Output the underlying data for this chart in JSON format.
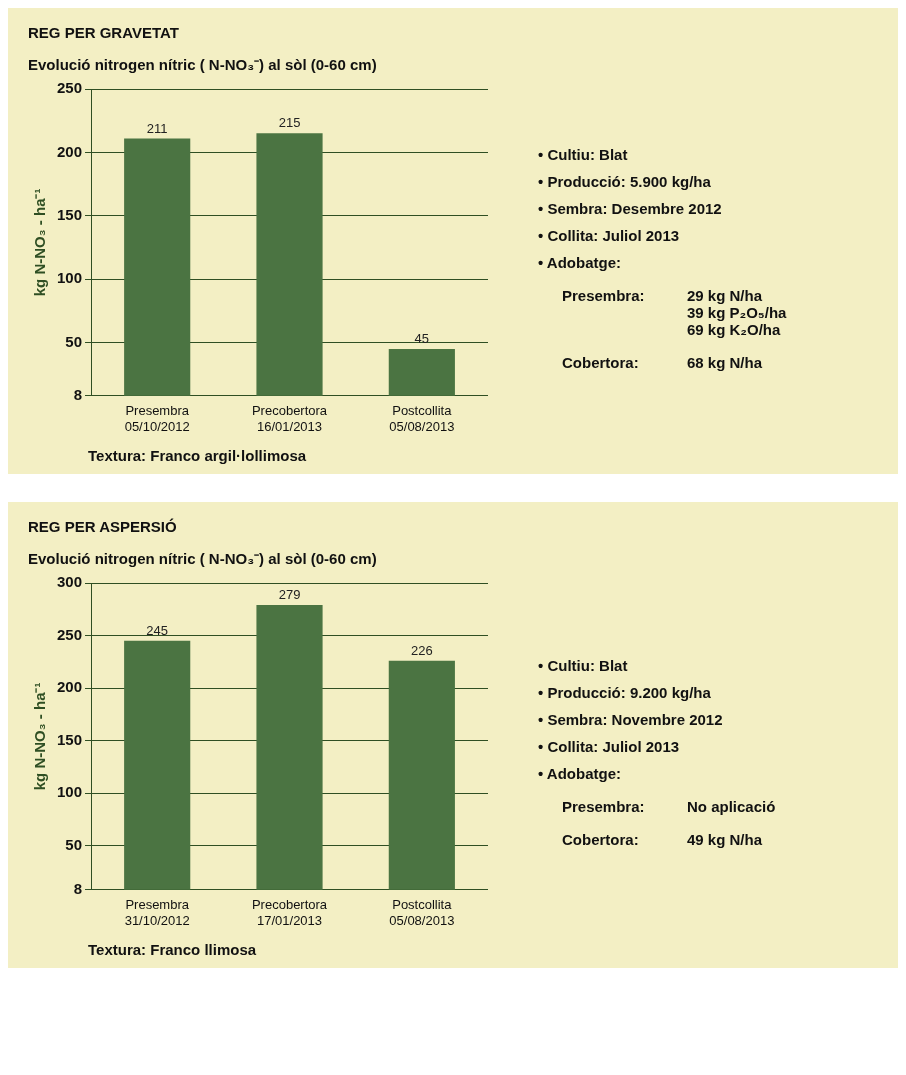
{
  "chart_data": [
    {
      "type": "bar",
      "title": "REG PER GRAVETAT",
      "subtitle": "Evolució nitrogen nítric ( N-NO₃⁻) al sòl (0-60 cm)",
      "ylabel": "kg N-NO₃ - ha⁻¹",
      "categories": [
        "Presembra\n05/10/2012",
        "Precobertora\n16/01/2013",
        "Postcollita\n05/08/2013"
      ],
      "values": [
        211,
        215,
        45
      ],
      "color": "#4b7442",
      "ylim": [
        8,
        250
      ],
      "yticks": [
        8,
        50,
        100,
        150,
        200,
        250
      ],
      "grid": "y",
      "data_labels": true,
      "legend": false,
      "annotations": [
        "Textura: Franco argil·lollimosa",
        "• Cultiu: Blat",
        "• Producció: 5.900 kg/ha",
        "• Sembra: Desembre 2012",
        "• Collita: Juliol 2013",
        "• Adobatge:",
        "Presembra:\t29 kg N/ha\n39 kg P₂O₅/ha\n69 kg K₂O/ha",
        "Cobertora:\t68 kg N/ha"
      ]
    },
    {
      "type": "bar",
      "title": "REG PER ASPERSIÓ",
      "subtitle": "Evolució nitrogen nítric ( N-NO₃⁻) al sòl (0-60 cm)",
      "ylabel": "kg N-NO₃ - ha⁻¹",
      "categories": [
        "Presembra\n31/10/2012",
        "Precobertora\n17/01/2013",
        "Postcollita\n05/08/2013"
      ],
      "values": [
        245,
        279,
        226
      ],
      "color": "#4b7442",
      "ylim": [
        8,
        300
      ],
      "yticks": [
        8,
        50,
        100,
        150,
        200,
        250,
        300
      ],
      "grid": "y",
      "data_labels": true,
      "legend": false,
      "annotations": [
        "Textura: Franco llimosa",
        "• Cultiu: Blat",
        "• Producció: 9.200 kg/ha",
        "• Sembra: Novembre 2012",
        "• Collita: Juliol 2013",
        "• Adobatge:",
        "Presembra:\tNo aplicació",
        "Cobertora:\t49 kg N/ha"
      ]
    }
  ]
}
